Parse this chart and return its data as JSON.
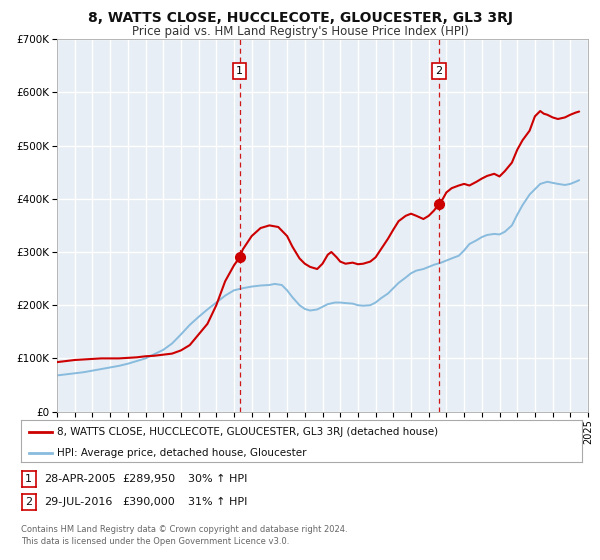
{
  "title": "8, WATTS CLOSE, HUCCLECOTE, GLOUCESTER, GL3 3RJ",
  "subtitle": "Price paid vs. HM Land Registry's House Price Index (HPI)",
  "title_fontsize": 10,
  "subtitle_fontsize": 8.5,
  "bg_color": "#e8eef5",
  "grid_color": "#ffffff",
  "red_line_color": "#cc0000",
  "blue_line_color": "#88bbdd",
  "ylim": [
    0,
    700000
  ],
  "xlim_start": 1995,
  "xlim_end": 2025,
  "ytick_labels": [
    "£0",
    "£100K",
    "£200K",
    "£300K",
    "£400K",
    "£500K",
    "£600K",
    "£700K"
  ],
  "ytick_values": [
    0,
    100000,
    200000,
    300000,
    400000,
    500000,
    600000,
    700000
  ],
  "marker1_x": 2005.32,
  "marker1_y": 289950,
  "marker2_x": 2016.58,
  "marker2_y": 390000,
  "legend_line1": "8, WATTS CLOSE, HUCCLECOTE, GLOUCESTER, GL3 3RJ (detached house)",
  "legend_line2": "HPI: Average price, detached house, Gloucester",
  "table_row1": [
    "1",
    "28-APR-2005",
    "£289,950",
    "30% ↑ HPI"
  ],
  "table_row2": [
    "2",
    "29-JUL-2016",
    "£390,000",
    "31% ↑ HPI"
  ],
  "footnote": "Contains HM Land Registry data © Crown copyright and database right 2024.\nThis data is licensed under the Open Government Licence v3.0.",
  "red_x": [
    1995.0,
    1995.5,
    1996.0,
    1996.5,
    1997.0,
    1997.5,
    1998.0,
    1998.5,
    1999.0,
    1999.5,
    2000.0,
    2000.5,
    2001.0,
    2001.5,
    2002.0,
    2002.5,
    2003.0,
    2003.5,
    2004.0,
    2004.5,
    2005.0,
    2005.32,
    2005.5,
    2006.0,
    2006.5,
    2007.0,
    2007.5,
    2008.0,
    2008.3,
    2008.7,
    2009.0,
    2009.3,
    2009.7,
    2010.0,
    2010.3,
    2010.5,
    2010.8,
    2011.0,
    2011.3,
    2011.7,
    2012.0,
    2012.3,
    2012.7,
    2013.0,
    2013.3,
    2013.7,
    2014.0,
    2014.3,
    2014.7,
    2015.0,
    2015.3,
    2015.7,
    2016.0,
    2016.3,
    2016.58,
    2016.8,
    2017.0,
    2017.3,
    2017.7,
    2018.0,
    2018.3,
    2018.7,
    2019.0,
    2019.3,
    2019.7,
    2020.0,
    2020.3,
    2020.7,
    2021.0,
    2021.3,
    2021.7,
    2022.0,
    2022.3,
    2022.5,
    2022.7,
    2023.0,
    2023.3,
    2023.7,
    2024.0,
    2024.3,
    2024.5
  ],
  "red_y": [
    93000,
    95000,
    97000,
    98000,
    99000,
    100000,
    100000,
    100000,
    101000,
    102000,
    104000,
    105000,
    107000,
    109000,
    115000,
    125000,
    145000,
    165000,
    200000,
    245000,
    275000,
    289950,
    305000,
    330000,
    345000,
    350000,
    347000,
    330000,
    310000,
    288000,
    278000,
    272000,
    268000,
    278000,
    295000,
    300000,
    290000,
    282000,
    278000,
    280000,
    277000,
    278000,
    282000,
    290000,
    305000,
    325000,
    342000,
    358000,
    368000,
    372000,
    368000,
    362000,
    368000,
    378000,
    390000,
    400000,
    412000,
    420000,
    425000,
    428000,
    425000,
    432000,
    438000,
    443000,
    447000,
    442000,
    452000,
    468000,
    492000,
    510000,
    528000,
    555000,
    565000,
    560000,
    558000,
    553000,
    550000,
    553000,
    558000,
    562000,
    564000
  ],
  "blue_x": [
    1995.0,
    1995.5,
    1996.0,
    1996.5,
    1997.0,
    1997.5,
    1998.0,
    1998.5,
    1999.0,
    1999.5,
    2000.0,
    2000.5,
    2001.0,
    2001.5,
    2002.0,
    2002.5,
    2003.0,
    2003.5,
    2004.0,
    2004.5,
    2005.0,
    2005.5,
    2006.0,
    2006.5,
    2007.0,
    2007.3,
    2007.7,
    2008.0,
    2008.3,
    2008.7,
    2009.0,
    2009.3,
    2009.7,
    2010.0,
    2010.3,
    2010.7,
    2011.0,
    2011.3,
    2011.7,
    2012.0,
    2012.3,
    2012.7,
    2013.0,
    2013.3,
    2013.7,
    2014.0,
    2014.3,
    2014.7,
    2015.0,
    2015.3,
    2015.7,
    2016.0,
    2016.3,
    2016.7,
    2017.0,
    2017.3,
    2017.7,
    2018.0,
    2018.3,
    2018.7,
    2019.0,
    2019.3,
    2019.7,
    2020.0,
    2020.3,
    2020.7,
    2021.0,
    2021.3,
    2021.7,
    2022.0,
    2022.3,
    2022.7,
    2023.0,
    2023.3,
    2023.7,
    2024.0,
    2024.3,
    2024.5
  ],
  "blue_y": [
    68000,
    70000,
    72000,
    74000,
    77000,
    80000,
    83000,
    86000,
    90000,
    95000,
    100000,
    108000,
    116000,
    128000,
    145000,
    163000,
    178000,
    192000,
    205000,
    218000,
    228000,
    232000,
    235000,
    237000,
    238000,
    240000,
    238000,
    228000,
    215000,
    200000,
    193000,
    190000,
    192000,
    197000,
    202000,
    205000,
    205000,
    204000,
    203000,
    200000,
    199000,
    200000,
    205000,
    213000,
    222000,
    232000,
    242000,
    252000,
    260000,
    265000,
    268000,
    272000,
    276000,
    280000,
    284000,
    288000,
    293000,
    303000,
    315000,
    322000,
    328000,
    332000,
    334000,
    333000,
    338000,
    350000,
    370000,
    388000,
    408000,
    418000,
    428000,
    432000,
    430000,
    428000,
    426000,
    428000,
    432000,
    435000
  ]
}
